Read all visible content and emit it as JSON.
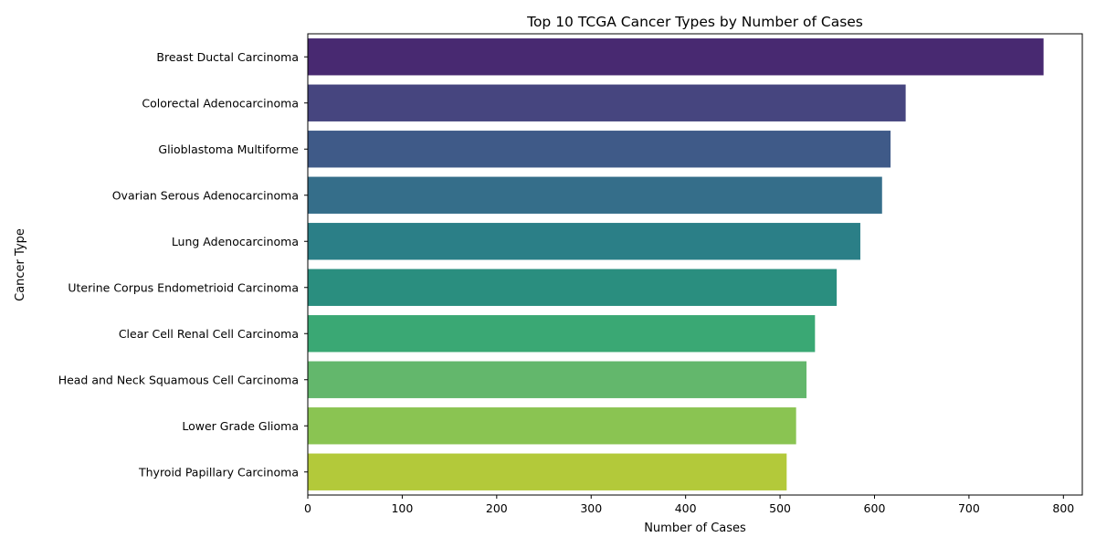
{
  "chart_data": {
    "type": "bar",
    "orientation": "horizontal",
    "title": "Top 10 TCGA Cancer Types by Number of Cases",
    "xlabel": "Number of Cases",
    "ylabel": "Cancer Type",
    "xlim": [
      0,
      820
    ],
    "xticks": [
      0,
      100,
      200,
      300,
      400,
      500,
      600,
      700,
      800
    ],
    "grid": false,
    "categories": [
      "Breast Ductal Carcinoma",
      "Colorectal Adenocarcinoma",
      "Glioblastoma Multiforme",
      "Ovarian Serous Adenocarcinoma",
      "Lung Adenocarcinoma",
      "Uterine Corpus Endometrioid Carcinoma",
      "Clear Cell Renal Cell Carcinoma",
      "Head and Neck Squamous Cell Carcinoma",
      "Lower Grade Glioma",
      "Thyroid Papillary Carcinoma"
    ],
    "values": [
      779,
      633,
      617,
      608,
      585,
      560,
      537,
      528,
      517,
      507
    ],
    "colors": [
      "#482971",
      "#46457f",
      "#3f5a88",
      "#356e8a",
      "#2b7f87",
      "#2a8e7f",
      "#3aa874",
      "#63b76c",
      "#8ac452",
      "#b3c93a"
    ]
  }
}
